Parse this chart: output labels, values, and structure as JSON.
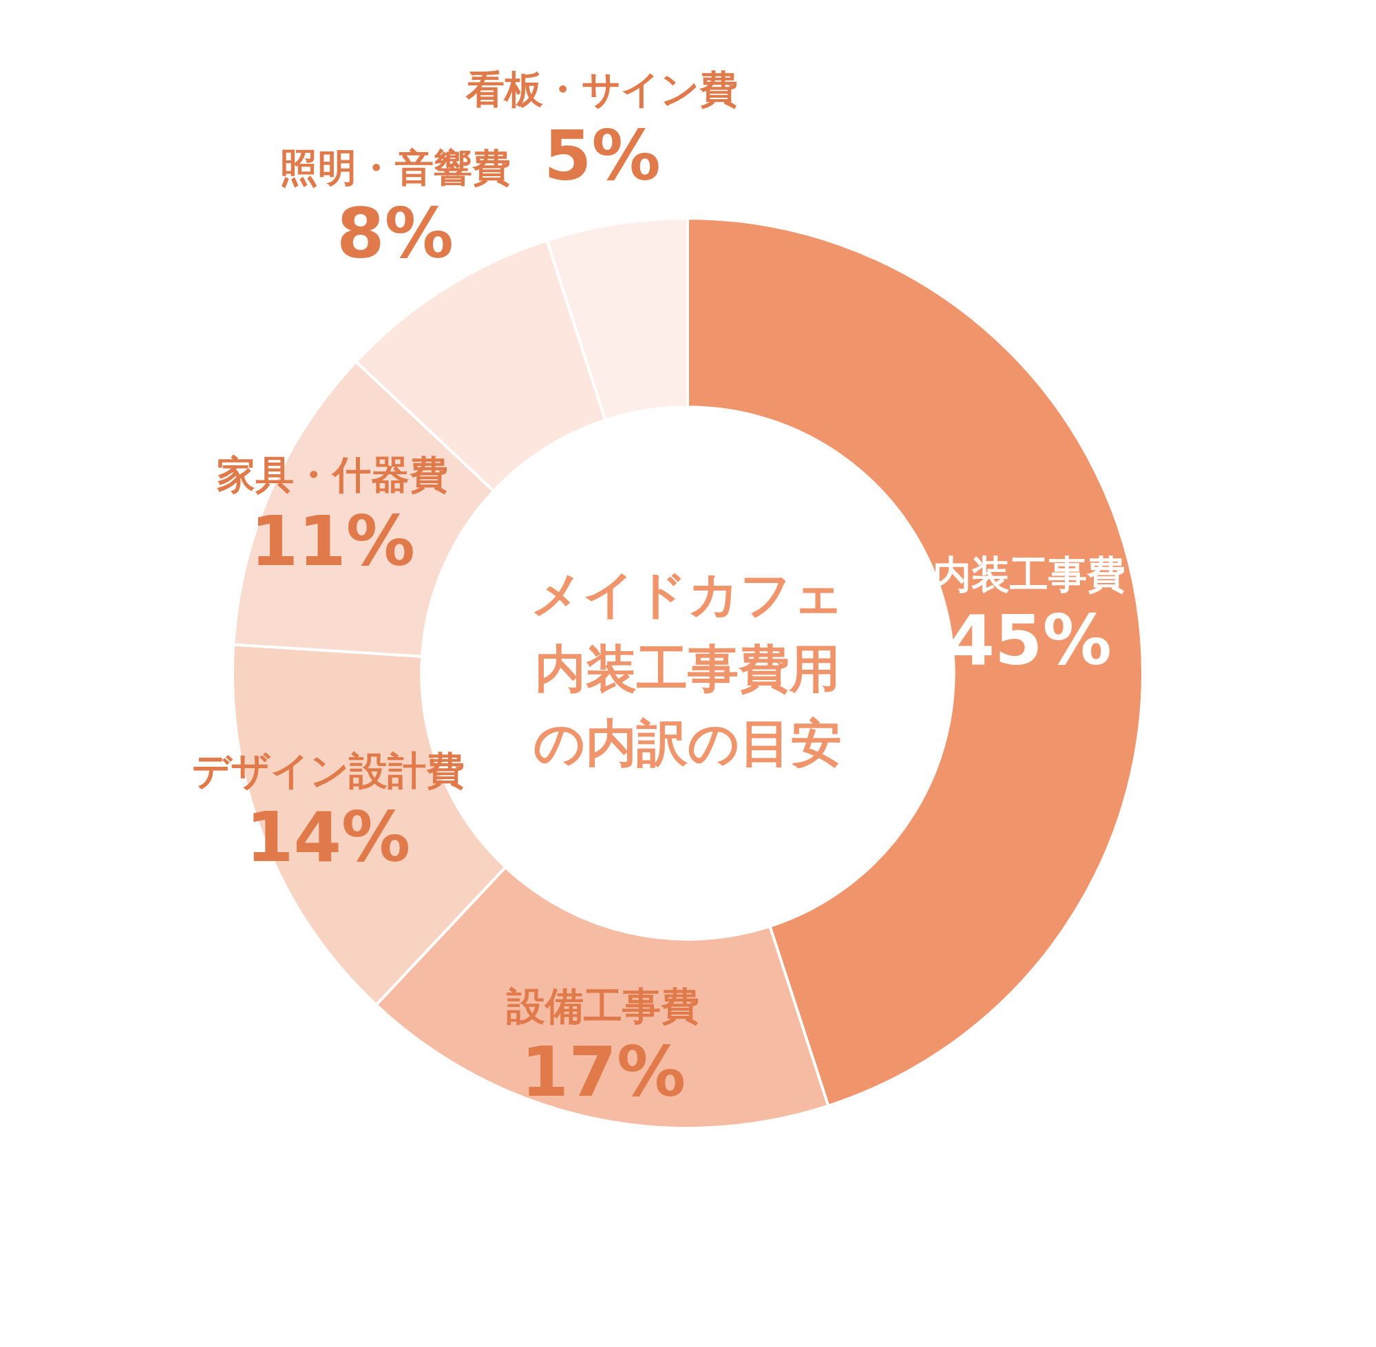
{
  "chart_data": {
    "type": "donut",
    "title": "メイドカフェ内装工事費用の内訳の目安",
    "categories": [
      "内装工事費",
      "設備工事費",
      "デザイン設計費",
      "家具・什器費",
      "照明・音響費",
      "看板・サイン費"
    ],
    "values": [
      45,
      17,
      14,
      11,
      8,
      5
    ],
    "value_labels": [
      "45%",
      "17%",
      "14%",
      "11%",
      "8%",
      "5%"
    ],
    "colors": [
      "#f0956b",
      "#f5bca3",
      "#f8d3c2",
      "#fadbd0",
      "#fce6de",
      "#fdeee9"
    ],
    "legend": false
  }
}
